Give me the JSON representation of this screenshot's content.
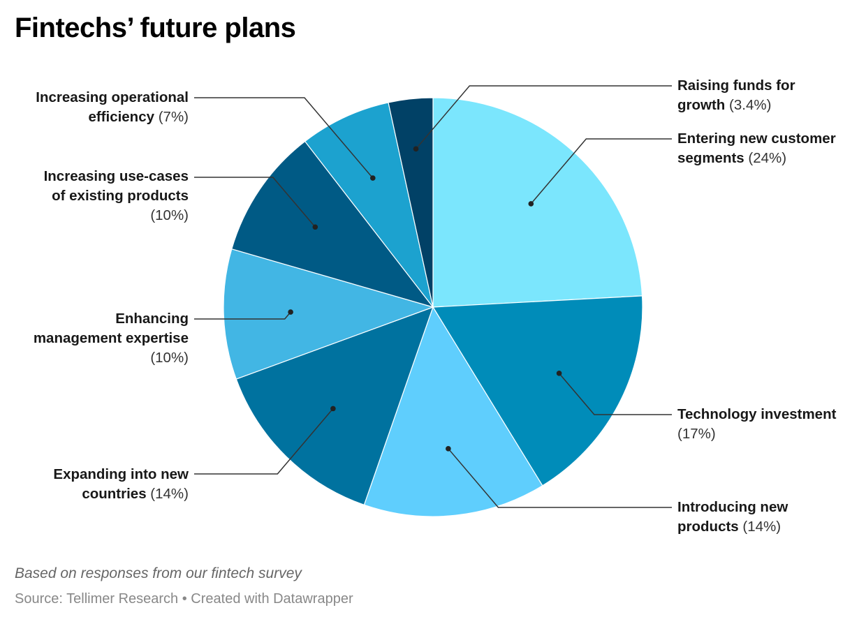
{
  "title": "Fintechs’ future plans",
  "notes": "Based on responses from our fintech survey",
  "source": "Source: Tellimer Research • Created with Datawrapper",
  "chart_data": {
    "type": "pie",
    "start": "12 o'clock, clockwise",
    "slices": [
      {
        "name": "Entering new customer segments",
        "label_bold": "Entering new customer segments",
        "pct_label": "(24%)",
        "value": 24,
        "color": "#7be6fd"
      },
      {
        "name": "Technology investment",
        "label_bold": "Technology investment",
        "pct_label": "(17%)",
        "value": 17,
        "color": "#008cb9"
      },
      {
        "name": "Introducing new products",
        "label_bold": "Introducing new products",
        "pct_label": "(14%)",
        "value": 14,
        "color": "#5fcefd"
      },
      {
        "name": "Expanding into new countries",
        "label_bold": "Expanding into new countries",
        "pct_label": "(14%)",
        "value": 14,
        "color": "#00729f"
      },
      {
        "name": "Enhancing management expertise",
        "label_bold": "Enhancing management expertise",
        "pct_label": "(10%)",
        "value": 10,
        "color": "#42b6e4"
      },
      {
        "name": "Increasing use-cases of existing products",
        "label_bold": "Increasing use-cases of existing products",
        "pct_label": "(10%)",
        "value": 10,
        "color": "#005a85"
      },
      {
        "name": "Increasing operational efficiency",
        "label_bold": "Increasing operational efficiency",
        "pct_label": "(7%)",
        "value": 7,
        "color": "#1ca2cf"
      },
      {
        "name": "Raising funds for growth",
        "label_bold": "Raising funds for growth",
        "pct_label": "(3.4%)",
        "value": 3.4,
        "color": "#014166"
      }
    ]
  }
}
